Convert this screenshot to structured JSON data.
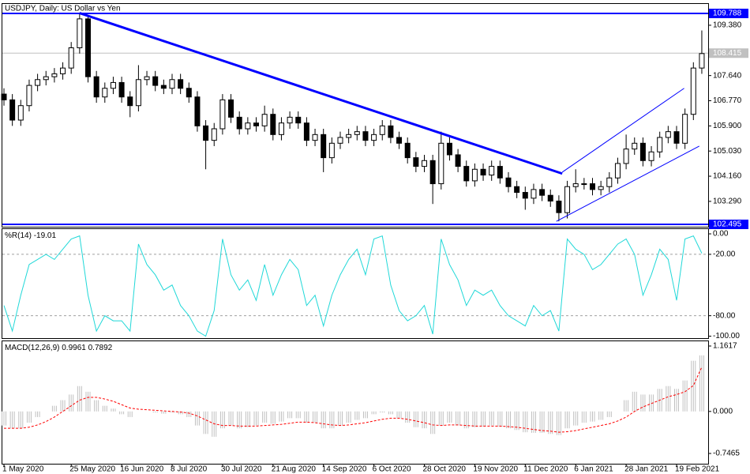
{
  "chart_data": [
    {
      "type": "candlestick",
      "title": "USDJPY, Daily:  US Dollar vs Yen",
      "categories": [
        "1 May 2020",
        null,
        null,
        null,
        null,
        null,
        null,
        null,
        "25 May 2020",
        null,
        null,
        null,
        null,
        null,
        "16 Jun 2020",
        null,
        null,
        null,
        null,
        null,
        "8 Jul 2020",
        null,
        null,
        null,
        null,
        null,
        "30 Jul 2020",
        null,
        null,
        null,
        null,
        null,
        "21 Aug 2020",
        null,
        null,
        null,
        null,
        null,
        "14 Sep 2020",
        null,
        null,
        null,
        null,
        null,
        "6 Oct 2020",
        null,
        null,
        null,
        null,
        null,
        "28 Oct 2020",
        null,
        null,
        null,
        null,
        null,
        "19 Nov 2020",
        null,
        null,
        null,
        null,
        null,
        "11 Dec 2020",
        null,
        null,
        null,
        null,
        null,
        "6 Jan 2021",
        null,
        null,
        null,
        null,
        null,
        "28 Jan 2021",
        null,
        null,
        null,
        null,
        null,
        "19 Feb 2021",
        null,
        null,
        null
      ],
      "open": [
        107.0,
        106.8,
        106.1,
        106.6,
        107.3,
        107.5,
        107.6,
        107.7,
        107.9,
        108.6,
        109.6,
        107.6,
        106.9,
        107.2,
        107.4,
        106.9,
        106.6,
        107.5,
        107.6,
        107.3,
        107.2,
        107.5,
        107.2,
        106.9,
        105.9,
        105.4,
        105.8,
        106.8,
        106.2,
        105.8,
        106.0,
        105.9,
        106.3,
        105.6,
        106.0,
        106.2,
        106.0,
        105.4,
        105.6,
        104.8,
        105.3,
        105.5,
        105.6,
        105.7,
        105.4,
        105.6,
        105.9,
        105.5,
        105.3,
        104.8,
        104.5,
        104.7,
        103.9,
        105.3,
        104.9,
        104.5,
        104.0,
        104.4,
        104.2,
        104.5,
        104.1,
        103.8,
        103.6,
        103.4,
        103.7,
        103.5,
        103.3,
        102.9,
        103.8,
        103.9,
        103.9,
        103.7,
        103.8,
        104.1,
        104.6,
        105.1,
        105.3,
        104.7,
        105.0,
        105.5,
        105.7,
        105.3,
        106.3,
        107.9
      ],
      "high": [
        107.2,
        107.0,
        106.8,
        107.5,
        107.7,
        107.8,
        107.9,
        108.1,
        108.8,
        109.8,
        109.7,
        107.8,
        107.4,
        107.6,
        107.6,
        107.1,
        108.0,
        107.8,
        107.8,
        107.5,
        107.7,
        107.7,
        107.4,
        107.1,
        106.1,
        106.0,
        107.0,
        107.0,
        106.4,
        106.2,
        106.2,
        106.6,
        106.5,
        106.2,
        106.4,
        106.4,
        106.2,
        105.8,
        105.8,
        105.5,
        105.7,
        105.8,
        105.9,
        105.9,
        105.8,
        106.1,
        106.1,
        105.7,
        105.5,
        105.0,
        104.9,
        104.9,
        105.7,
        105.5,
        105.1,
        104.7,
        104.6,
        104.6,
        104.7,
        104.7,
        104.3,
        104.0,
        103.8,
        103.9,
        103.9,
        103.7,
        103.5,
        104.0,
        104.4,
        104.1,
        104.1,
        104.0,
        104.3,
        104.8,
        105.6,
        105.5,
        105.5,
        105.2,
        105.7,
        105.9,
        105.9,
        106.5,
        108.1,
        109.2
      ],
      "low": [
        106.6,
        105.9,
        105.9,
        106.4,
        107.1,
        107.3,
        107.4,
        107.5,
        107.7,
        108.4,
        107.4,
        106.7,
        106.7,
        107.0,
        106.7,
        106.2,
        106.4,
        107.3,
        107.1,
        107.0,
        107.0,
        107.0,
        106.7,
        105.7,
        104.4,
        105.2,
        105.6,
        106.0,
        105.6,
        105.6,
        105.7,
        105.7,
        105.4,
        105.4,
        105.8,
        105.8,
        105.2,
        105.2,
        104.3,
        104.6,
        105.1,
        105.3,
        105.4,
        105.2,
        105.2,
        105.4,
        105.3,
        105.1,
        104.6,
        104.3,
        104.3,
        103.2,
        103.7,
        104.7,
        104.3,
        103.8,
        103.8,
        104.0,
        104.0,
        103.9,
        103.6,
        103.4,
        103.0,
        103.2,
        103.3,
        103.1,
        102.6,
        102.7,
        103.6,
        103.7,
        103.5,
        103.5,
        103.6,
        103.9,
        104.4,
        104.9,
        104.5,
        104.5,
        104.8,
        105.3,
        105.1,
        105.1,
        106.1,
        107.7
      ],
      "close": [
        106.8,
        106.1,
        106.6,
        107.3,
        107.5,
        107.6,
        107.7,
        107.9,
        108.6,
        109.6,
        107.6,
        106.9,
        107.2,
        107.4,
        106.9,
        106.6,
        107.5,
        107.6,
        107.3,
        107.2,
        107.5,
        107.2,
        106.9,
        105.9,
        105.4,
        105.8,
        106.8,
        106.2,
        105.8,
        106.0,
        105.9,
        106.3,
        105.6,
        106.0,
        106.2,
        106.0,
        105.4,
        105.6,
        104.8,
        105.3,
        105.5,
        105.6,
        105.7,
        105.4,
        105.6,
        105.9,
        105.5,
        105.3,
        104.8,
        104.5,
        104.7,
        103.9,
        105.3,
        104.9,
        104.5,
        104.0,
        104.4,
        104.2,
        104.5,
        104.1,
        103.8,
        103.6,
        103.4,
        103.7,
        103.5,
        103.3,
        102.9,
        103.8,
        103.9,
        103.9,
        103.7,
        103.8,
        104.1,
        104.6,
        105.1,
        105.3,
        104.7,
        105.0,
        105.5,
        105.7,
        105.3,
        106.3,
        107.9,
        108.4
      ],
      "ylim": [
        102.413,
        110.116
      ],
      "yticks": [
        {
          "value": 109.38,
          "label": "109.380"
        },
        {
          "value": 107.64,
          "label": "107.640"
        },
        {
          "value": 106.77,
          "label": "106.770"
        },
        {
          "value": 105.9,
          "label": "105.900"
        },
        {
          "value": 105.03,
          "label": "105.030"
        },
        {
          "value": 104.16,
          "label": "104.160"
        },
        {
          "value": 103.29,
          "label": "103.290"
        }
      ],
      "levels": [
        109.788,
        102.495
      ],
      "level_color": "#0000ff",
      "current_price": 108.415,
      "trendlines": [
        {
          "points": [
            [
              9,
              109.8
            ],
            [
              66.4,
              104.25
            ]
          ],
          "color": "#0000ff",
          "width": 3
        },
        {
          "points": [
            [
              65.7,
              102.6
            ],
            [
              82.7,
              105.2
            ]
          ],
          "color": "#0000ff",
          "width": 1
        },
        {
          "points": [
            [
              66.4,
              104.3
            ],
            [
              80.9,
              107.2
            ]
          ],
          "color": "#0000ff",
          "width": 1
        }
      ]
    },
    {
      "type": "line",
      "title": "%R(14)",
      "color": "#20d8d8",
      "values": [
        -70,
        -95,
        -60,
        -30,
        -25,
        -20,
        -25,
        -15,
        -5,
        -2,
        -60,
        -95,
        -80,
        -85,
        -85,
        -95,
        -10,
        -30,
        -40,
        -55,
        -50,
        -70,
        -80,
        -95,
        -100,
        -75,
        -5,
        -40,
        -55,
        -45,
        -65,
        -30,
        -60,
        -40,
        -25,
        -35,
        -70,
        -60,
        -90,
        -60,
        -40,
        -25,
        -15,
        -40,
        -5,
        -2,
        -50,
        -75,
        -85,
        -80,
        -70,
        -98,
        -5,
        -30,
        -45,
        -70,
        -55,
        -60,
        -55,
        -70,
        -80,
        -85,
        -90,
        -70,
        -80,
        -75,
        -95,
        -5,
        -15,
        -20,
        -35,
        -30,
        -20,
        -10,
        -5,
        -20,
        -60,
        -40,
        -15,
        -25,
        -65,
        -5,
        -2,
        -19.01
      ],
      "ylim": [
        -101.9,
        4.65
      ],
      "yticks": [
        {
          "value": 0,
          "label": "0.00"
        },
        {
          "value": -20,
          "label": "-20.00"
        },
        {
          "value": -80,
          "label": "-80.00"
        },
        {
          "value": -100,
          "label": "-100.00"
        }
      ],
      "levels": [
        -20,
        -80
      ]
    },
    {
      "type": "macd",
      "title": "MACD(12,26,9)",
      "series": [
        {
          "color": "#c0c0c0",
          "values": [
            -0.25,
            -0.3,
            -0.3,
            -0.2,
            -0.1,
            0.0,
            0.1,
            0.2,
            0.3,
            0.45,
            0.35,
            0.2,
            0.1,
            0.05,
            -0.05,
            -0.1,
            0.0,
            0.0,
            -0.02,
            -0.04,
            -0.02,
            -0.05,
            -0.1,
            -0.25,
            -0.4,
            -0.45,
            -0.3,
            -0.25,
            -0.3,
            -0.28,
            -0.25,
            -0.2,
            -0.22,
            -0.18,
            -0.12,
            -0.12,
            -0.2,
            -0.2,
            -0.3,
            -0.3,
            -0.25,
            -0.2,
            -0.15,
            -0.12,
            -0.05,
            -0.02,
            -0.05,
            -0.12,
            -0.2,
            -0.28,
            -0.3,
            -0.4,
            -0.25,
            -0.2,
            -0.25,
            -0.3,
            -0.28,
            -0.27,
            -0.25,
            -0.27,
            -0.3,
            -0.33,
            -0.37,
            -0.38,
            -0.38,
            -0.4,
            -0.42,
            -0.3,
            -0.25,
            -0.2,
            -0.18,
            -0.15,
            -0.1,
            0.0,
            0.2,
            0.35,
            0.3,
            0.3,
            0.4,
            0.45,
            0.4,
            0.55,
            0.9,
            0.9961
          ]
        },
        {
          "color": "#ff0000",
          "values": [
            -0.3,
            -0.3,
            -0.3,
            -0.28,
            -0.24,
            -0.18,
            -0.1,
            0.0,
            0.1,
            0.2,
            0.25,
            0.25,
            0.22,
            0.18,
            0.12,
            0.06,
            0.04,
            0.03,
            0.02,
            0.01,
            0.0,
            -0.01,
            -0.03,
            -0.08,
            -0.15,
            -0.22,
            -0.25,
            -0.25,
            -0.26,
            -0.26,
            -0.26,
            -0.25,
            -0.24,
            -0.23,
            -0.21,
            -0.19,
            -0.19,
            -0.2,
            -0.22,
            -0.24,
            -0.25,
            -0.24,
            -0.22,
            -0.2,
            -0.17,
            -0.14,
            -0.12,
            -0.12,
            -0.14,
            -0.17,
            -0.2,
            -0.24,
            -0.25,
            -0.24,
            -0.24,
            -0.25,
            -0.26,
            -0.26,
            -0.26,
            -0.26,
            -0.27,
            -0.28,
            -0.3,
            -0.32,
            -0.34,
            -0.35,
            -0.37,
            -0.36,
            -0.34,
            -0.31,
            -0.28,
            -0.25,
            -0.22,
            -0.17,
            -0.1,
            0.0,
            0.08,
            0.14,
            0.2,
            0.26,
            0.3,
            0.35,
            0.46,
            0.7892
          ]
        }
      ],
      "ylim": [
        -0.929,
        1.246
      ],
      "yticks": [
        {
          "value": 1.1617,
          "label": "1.1617"
        },
        {
          "value": 0,
          "label": "0.000"
        },
        {
          "value": -0.7465,
          "label": "-0.7465"
        }
      ]
    }
  ]
}
